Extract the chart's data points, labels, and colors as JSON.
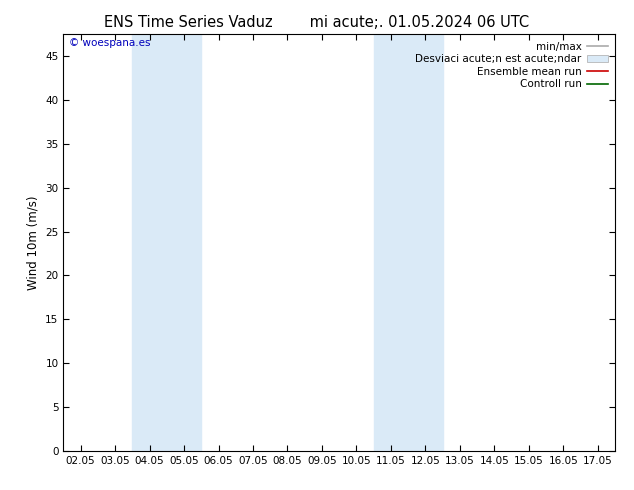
{
  "title_left": "ENS Time Series Vaduz",
  "title_right": "mi acute;. 01.05.2024 06 UTC",
  "ylabel": "Wind 10m (m/s)",
  "background_color": "#ffffff",
  "plot_bg_color": "#ffffff",
  "x_ticks": [
    "02.05",
    "03.05",
    "04.05",
    "05.05",
    "06.05",
    "07.05",
    "08.05",
    "09.05",
    "10.05",
    "11.05",
    "12.05",
    "13.05",
    "14.05",
    "15.05",
    "16.05",
    "17.05"
  ],
  "ylim": [
    0,
    47.5
  ],
  "yticks": [
    0,
    5,
    10,
    15,
    20,
    25,
    30,
    35,
    40,
    45
  ],
  "shade_bands": [
    {
      "xstart": 2,
      "xend": 4,
      "color": "#daeaf7"
    },
    {
      "xstart": 9,
      "xend": 11,
      "color": "#daeaf7"
    }
  ],
  "copyright_text": "© woespana.es",
  "copyright_color": "#0000bb",
  "legend_label_minmax": "min/max",
  "legend_label_desv": "Desviaci acute;n est acute;ndar",
  "legend_label_ens": "Ensemble mean run",
  "legend_label_ctrl": "Controll run",
  "legend_color_minmax": "#aaaaaa",
  "legend_color_desv": "#daeaf7",
  "legend_color_ens": "#cc0000",
  "legend_color_ctrl": "#006600",
  "tick_label_fontsize": 7.5,
  "ylabel_fontsize": 8.5,
  "title_fontsize": 10.5,
  "legend_fontsize": 7.5
}
